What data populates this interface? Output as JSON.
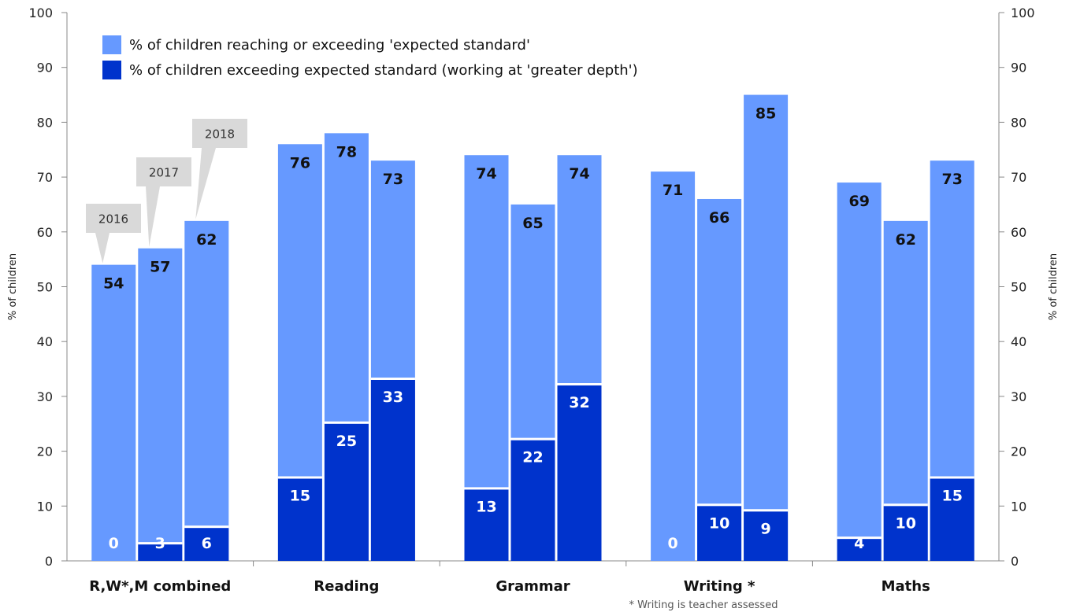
{
  "chart_data": {
    "type": "bar",
    "categories": [
      "R,W*,M combined",
      "Reading",
      "Grammar",
      "Writing *",
      "Maths"
    ],
    "years": [
      "2016",
      "2017",
      "2018"
    ],
    "series": [
      {
        "name": "% of children reaching or exceeding 'expected standard'",
        "color": "#6699ff",
        "values": [
          [
            54,
            57,
            62
          ],
          [
            76,
            78,
            73
          ],
          [
            74,
            65,
            74
          ],
          [
            71,
            66,
            85
          ],
          [
            69,
            62,
            73
          ]
        ]
      },
      {
        "name": "% of children exceeding expected standard (working at 'greater depth')",
        "color": "#0033cc",
        "values": [
          [
            0,
            3,
            6
          ],
          [
            15,
            25,
            33
          ],
          [
            13,
            22,
            32
          ],
          [
            0,
            10,
            9
          ],
          [
            4,
            10,
            15
          ]
        ]
      }
    ],
    "ylabel": "% of children",
    "ylabel_right": "% of children",
    "ylim": [
      0,
      100
    ],
    "yticks": [
      0,
      10,
      20,
      30,
      40,
      50,
      60,
      70,
      80,
      90,
      100
    ],
    "legend_position": "top-left",
    "grid": false,
    "footnote": "* Writing is teacher assessed"
  }
}
